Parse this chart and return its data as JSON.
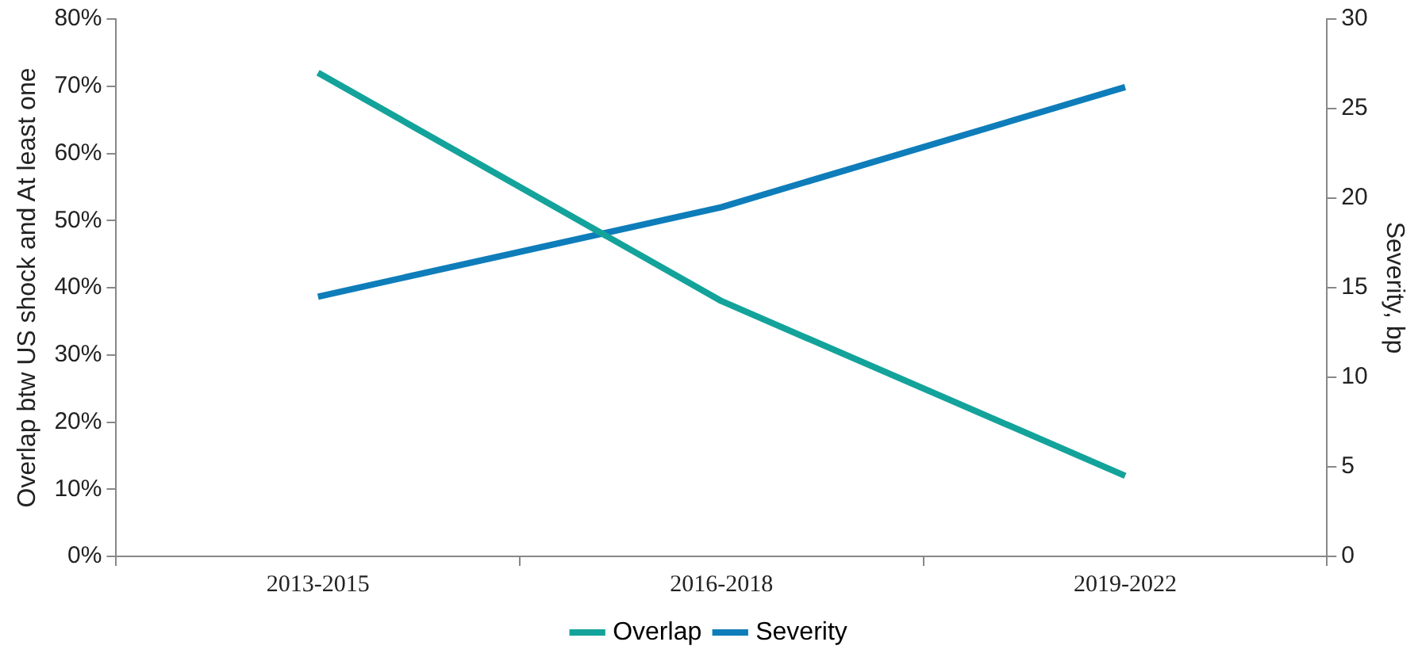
{
  "chart_data": {
    "type": "line",
    "ylabel": "Overlap btw US shock and At least one",
    "y2label": "Severity, bp",
    "categories": [
      "2013-2015",
      "2016-2018",
      "2019-2022"
    ],
    "series": [
      {
        "name": "Overlap",
        "color": "#13a39b",
        "values": [
          72,
          38,
          12
        ]
      },
      {
        "name": "Severity",
        "color": "#0e7dba",
        "values": [
          14.5,
          19.5,
          26.2
        ],
        "axis": "y2"
      }
    ],
    "ylim": [
      0,
      80
    ],
    "yticks": [
      {
        "value": 0,
        "label": "0%"
      },
      {
        "value": 10,
        "label": "10%"
      },
      {
        "value": 20,
        "label": "20%"
      },
      {
        "value": 30,
        "label": "30%"
      },
      {
        "value": 40,
        "label": "40%"
      },
      {
        "value": 50,
        "label": "50%"
      },
      {
        "value": 60,
        "label": "60%"
      },
      {
        "value": 70,
        "label": "70%"
      },
      {
        "value": 80,
        "label": "80%"
      }
    ],
    "y2lim": [
      0,
      30
    ],
    "y2ticks": [
      0,
      5,
      10,
      15,
      20,
      25,
      30
    ],
    "grid": false,
    "legend": "bottom",
    "marker": "none",
    "line_style": "solid"
  }
}
